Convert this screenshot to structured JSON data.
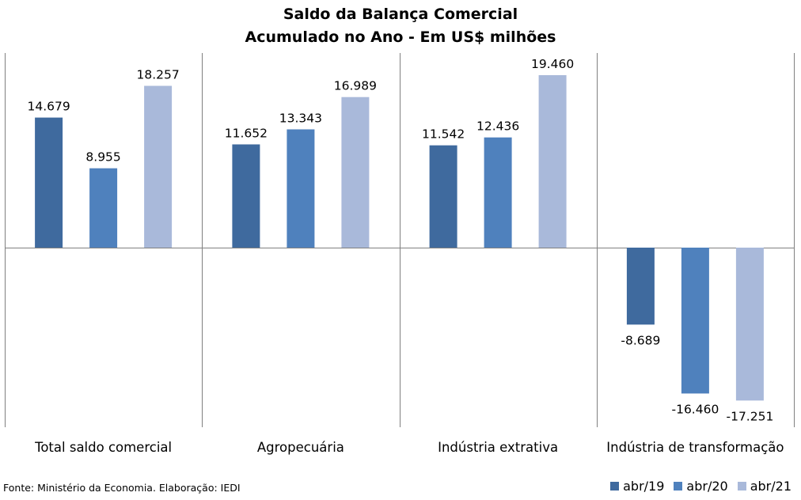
{
  "chart_data": {
    "type": "bar",
    "title": "Saldo da Balança Comercial",
    "subtitle": "Acumulado no Ano - Em US$ milhões",
    "categories": [
      "Total saldo comercial",
      "Agropecuária",
      "Indústria extrativa",
      "Indústria de transformação"
    ],
    "series": [
      {
        "name": "abr/19",
        "color": "#3f6a9e",
        "values": [
          14679,
          11652,
          11542,
          -8689
        ],
        "labels": [
          "14.679",
          "11.652",
          "11.542",
          "-8.689"
        ]
      },
      {
        "name": "abr/20",
        "color": "#4f81bd",
        "values": [
          8955,
          13343,
          12436,
          -16460
        ],
        "labels": [
          "8.955",
          "13.343",
          "12.436",
          "-16.460"
        ]
      },
      {
        "name": "abr/21",
        "color": "#a9b9da",
        "values": [
          18257,
          16989,
          19460,
          -17251
        ],
        "labels": [
          "18.257",
          "16.989",
          "19.460",
          "-17.251"
        ]
      }
    ],
    "ylim": [
      -20000,
      22000
    ],
    "grid": false,
    "legend_position": "bottom-right"
  },
  "footer": {
    "source": "Fonte: Ministério da Economia. Elaboração: IEDI"
  }
}
